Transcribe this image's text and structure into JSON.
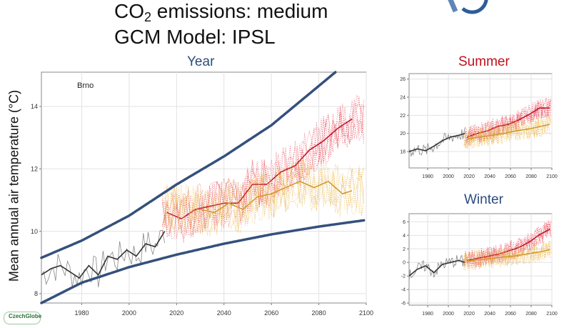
{
  "header": {
    "title_line1_prefix": "CO",
    "title_line1_sub": "2",
    "title_line1_suffix": " emissions: medium",
    "title_line2": "GCM Model: IPSL"
  },
  "logo": {
    "name": "CzechGlobe",
    "icon": "czechglobe-logo-icon",
    "corner_icon": "partner-logo-arc-icon"
  },
  "colors": {
    "observed": "#333333",
    "hot_scenario": "#e8374a",
    "mild_scenario": "#e8b040",
    "envelope": "#34507c",
    "year_title": "#2b4c7e",
    "summer_title": "#c0101a"
  },
  "chart_data": [
    {
      "type": "line",
      "panel": "Year",
      "title": "Year",
      "annotation": "Brno",
      "ylabel": "Mean annual air temperature (°C)",
      "xlim": [
        1963,
        2100
      ],
      "ylim": [
        7.7,
        15.1
      ],
      "xticks": [
        1980,
        2000,
        2020,
        2040,
        2060,
        2080,
        2100
      ],
      "yticks": [
        8,
        10,
        12,
        14
      ],
      "grid": true,
      "series": [
        {
          "role": "observed",
          "x": [
            1963,
            1967,
            1971,
            1975,
            1979,
            1983,
            1987,
            1991,
            1995,
            1999,
            2003,
            2007,
            2011,
            2015
          ],
          "y": [
            8.6,
            8.8,
            8.9,
            8.7,
            8.5,
            8.9,
            8.6,
            9.2,
            9.1,
            9.4,
            9.2,
            9.6,
            9.5,
            10.0
          ]
        },
        {
          "role": "scenario-hot",
          "x": [
            2016,
            2022,
            2028,
            2034,
            2040,
            2046,
            2052,
            2058,
            2064,
            2070,
            2076,
            2082,
            2088,
            2094
          ],
          "y": [
            10.6,
            10.4,
            10.7,
            10.8,
            10.9,
            10.9,
            11.5,
            11.5,
            11.9,
            12.1,
            12.6,
            12.9,
            13.3,
            13.6
          ]
        },
        {
          "role": "scenario-mild",
          "x": [
            2030,
            2036,
            2042,
            2048,
            2054,
            2060,
            2066,
            2072,
            2078,
            2084,
            2090,
            2094
          ],
          "y": [
            10.7,
            10.6,
            10.9,
            10.7,
            11.1,
            11.2,
            11.4,
            11.6,
            11.4,
            11.6,
            11.2,
            11.3
          ]
        },
        {
          "role": "envelope-upper",
          "x": [
            1963,
            1980,
            2000,
            2020,
            2040,
            2060,
            2087
          ],
          "y": [
            9.15,
            9.7,
            10.5,
            11.5,
            12.4,
            13.4,
            15.1
          ]
        },
        {
          "role": "envelope-lower",
          "x": [
            1963,
            1980,
            2000,
            2020,
            2040,
            2060,
            2080,
            2099
          ],
          "y": [
            7.7,
            8.35,
            8.85,
            9.25,
            9.6,
            9.9,
            10.15,
            10.35
          ]
        }
      ]
    },
    {
      "type": "line",
      "panel": "Summer",
      "title": "Summer",
      "xlim": [
        1962,
        2100
      ],
      "ylim": [
        16.2,
        26.6
      ],
      "xticks": [
        1980,
        2000,
        2020,
        2040,
        2060,
        2080,
        2100
      ],
      "yticks": [
        18,
        20,
        22,
        24,
        26
      ],
      "grid": true,
      "series": [
        {
          "role": "observed",
          "x": [
            1962,
            1970,
            1978,
            1986,
            1994,
            2002,
            2010,
            2016
          ],
          "y": [
            18.0,
            18.3,
            18.1,
            18.6,
            19.2,
            19.6,
            19.8,
            20.0
          ]
        },
        {
          "role": "scenario-hot",
          "x": [
            2018,
            2028,
            2038,
            2048,
            2058,
            2068,
            2078,
            2088,
            2098
          ],
          "y": [
            19.6,
            20.0,
            20.3,
            20.8,
            21.0,
            21.5,
            22.1,
            22.8,
            22.8
          ]
        },
        {
          "role": "scenario-mild",
          "x": [
            2018,
            2030,
            2042,
            2054,
            2066,
            2078,
            2090,
            2098
          ],
          "y": [
            19.4,
            19.6,
            19.8,
            20.0,
            20.3,
            20.5,
            20.8,
            21.0
          ]
        }
      ]
    },
    {
      "type": "line",
      "panel": "Winter",
      "title": "Winter",
      "xlim": [
        1962,
        2100
      ],
      "ylim": [
        -6.3,
        7.2
      ],
      "xticks": [
        1980,
        2000,
        2020,
        2040,
        2060,
        2080,
        2100
      ],
      "yticks": [
        -6,
        -4,
        -2,
        0,
        2,
        4,
        6
      ],
      "grid": true,
      "series": [
        {
          "role": "observed",
          "x": [
            1962,
            1970,
            1978,
            1986,
            1994,
            2002,
            2010,
            2016
          ],
          "y": [
            -2.0,
            -1.0,
            -0.5,
            -1.5,
            -0.3,
            0.0,
            0.3,
            0.0
          ]
        },
        {
          "role": "scenario-hot",
          "x": [
            2018,
            2028,
            2038,
            2048,
            2058,
            2068,
            2078,
            2088,
            2098
          ],
          "y": [
            0.3,
            0.6,
            0.9,
            1.2,
            1.7,
            2.2,
            3.0,
            4.1,
            4.9
          ]
        },
        {
          "role": "scenario-mild",
          "x": [
            2018,
            2030,
            2042,
            2054,
            2066,
            2078,
            2090,
            2098
          ],
          "y": [
            0.2,
            0.4,
            0.6,
            0.8,
            1.0,
            1.3,
            1.6,
            1.9
          ]
        }
      ]
    }
  ]
}
